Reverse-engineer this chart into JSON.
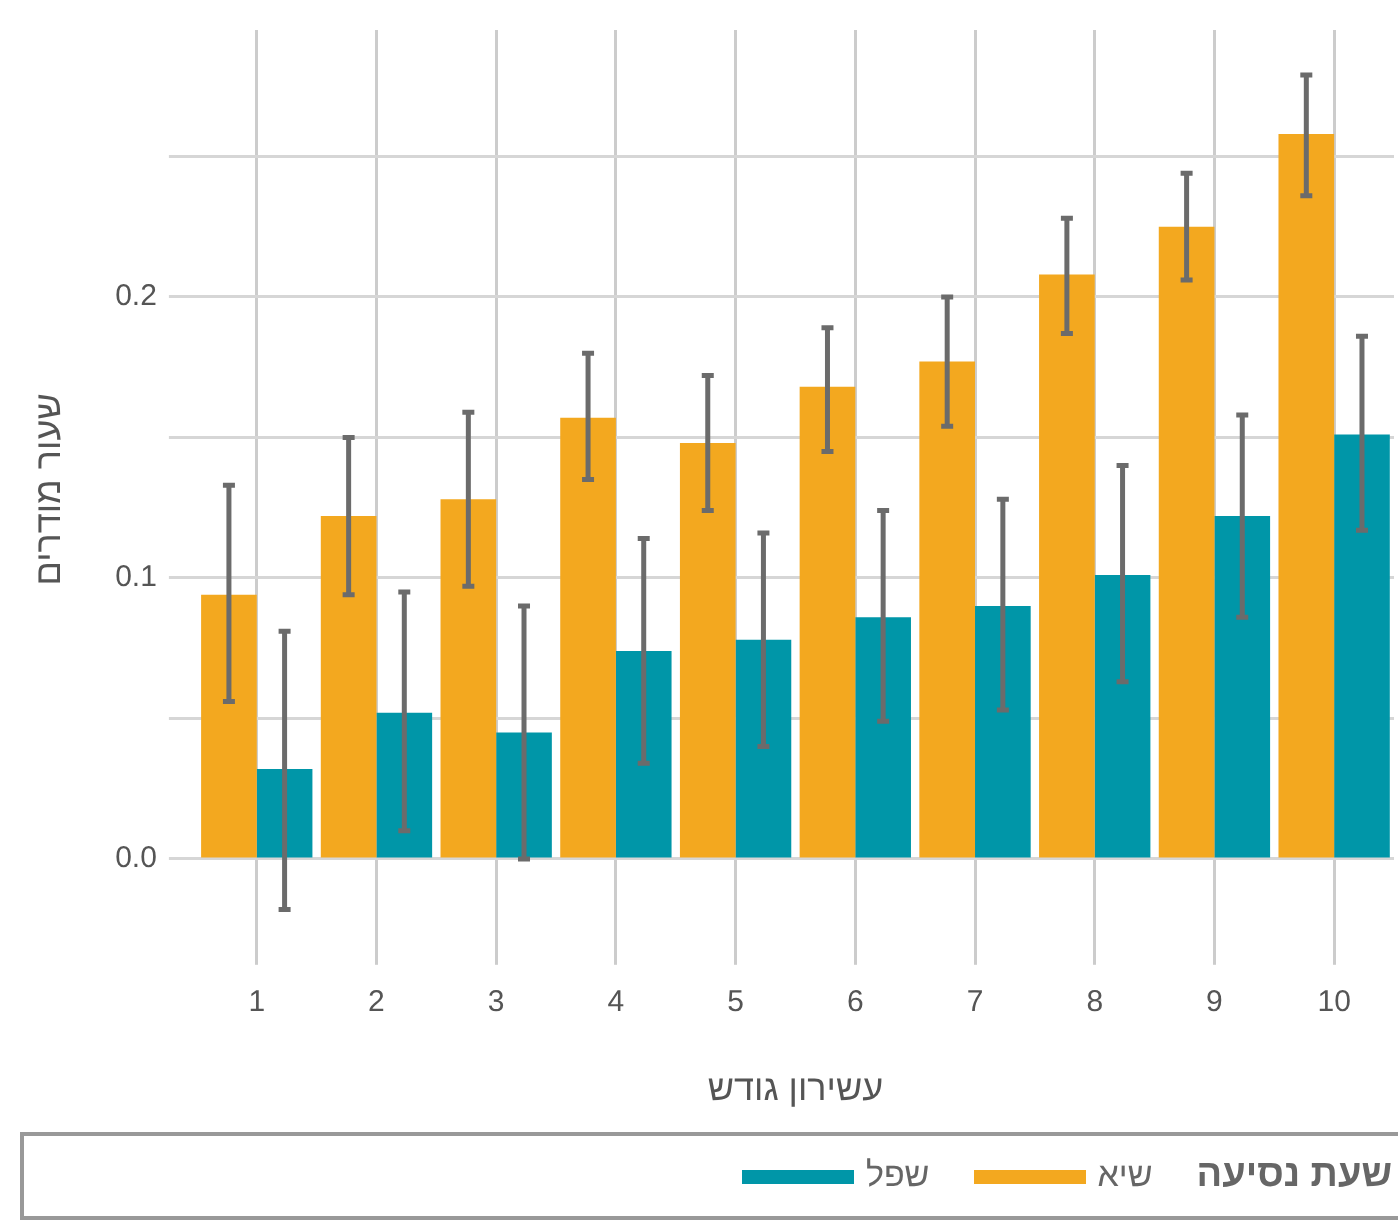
{
  "chart_data": {
    "type": "bar",
    "xlabel": "עשירון גודש",
    "ylabel": "שעור מודרים",
    "legend_title": "שעת נסיעה",
    "categories": [
      "1",
      "2",
      "3",
      "4",
      "5",
      "6",
      "7",
      "8",
      "9",
      "10"
    ],
    "series": [
      {
        "name": "שיא",
        "color": "#f3a81f",
        "values": [
          0.094,
          0.122,
          0.128,
          0.157,
          0.148,
          0.168,
          0.177,
          0.208,
          0.225,
          0.258
        ],
        "errors": [
          [
            0.056,
            0.133
          ],
          [
            0.094,
            0.15
          ],
          [
            0.097,
            0.159
          ],
          [
            0.135,
            0.18
          ],
          [
            0.124,
            0.172
          ],
          [
            0.145,
            0.189
          ],
          [
            0.154,
            0.2
          ],
          [
            0.187,
            0.228
          ],
          [
            0.206,
            0.244
          ],
          [
            0.236,
            0.279
          ]
        ]
      },
      {
        "name": "שפל",
        "color": "#0096a8",
        "values": [
          0.032,
          0.052,
          0.045,
          0.074,
          0.078,
          0.086,
          0.09,
          0.101,
          0.122,
          0.151
        ],
        "errors": [
          [
            -0.018,
            0.081
          ],
          [
            0.01,
            0.095
          ],
          [
            0.0,
            0.09
          ],
          [
            0.034,
            0.114
          ],
          [
            0.04,
            0.116
          ],
          [
            0.049,
            0.124
          ],
          [
            0.053,
            0.128
          ],
          [
            0.063,
            0.14
          ],
          [
            0.086,
            0.158
          ],
          [
            0.117,
            0.186
          ]
        ]
      }
    ],
    "ylim": [
      -0.032,
      0.295
    ],
    "yticks": [
      {
        "value": 0,
        "label": "0.0"
      },
      {
        "value": 0.05,
        "label": null
      },
      0.1,
      {
        "value": 0.15,
        "label": null
      },
      0.2,
      {
        "value": 0.25,
        "label": null
      }
    ],
    "grid": true,
    "legend": "bottom"
  }
}
